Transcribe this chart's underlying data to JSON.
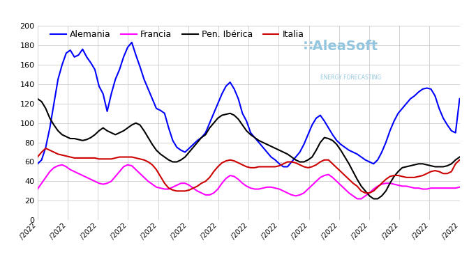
{
  "legend": [
    "Alemania",
    "Francia",
    "Pen. Ibérica",
    "Italia"
  ],
  "colors": {
    "Alemania": "#0000ff",
    "Francia": "#ff00ff",
    "Pen. Iberica": "#000000",
    "Italia": "#cc0000"
  },
  "line_width": 1.5,
  "ylim": [
    0,
    200
  ],
  "yticks": [
    0,
    20,
    40,
    60,
    80,
    100,
    120,
    140,
    160,
    180,
    200
  ],
  "watermark": "AleaSoft",
  "watermark_sub": "ENERGY FORECASTING",
  "background_color": "#ffffff",
  "grid_color": "#cccccc",
  "num_ticks": 15,
  "alemania": [
    58,
    62,
    75,
    95,
    120,
    145,
    160,
    172,
    175,
    168,
    170,
    176,
    168,
    162,
    155,
    138,
    130,
    112,
    130,
    145,
    155,
    168,
    178,
    183,
    170,
    158,
    145,
    135,
    125,
    115,
    113,
    110,
    95,
    82,
    75,
    72,
    70,
    74,
    78,
    82,
    85,
    90,
    100,
    110,
    120,
    130,
    138,
    142,
    135,
    125,
    110,
    102,
    90,
    85,
    80,
    75,
    70,
    65,
    62,
    58,
    55,
    55,
    60,
    65,
    70,
    78,
    88,
    98,
    105,
    108,
    102,
    95,
    88,
    82,
    78,
    75,
    72,
    70,
    68,
    65,
    62,
    60,
    58,
    62,
    70,
    80,
    92,
    102,
    110,
    115,
    120,
    125,
    128,
    132,
    135,
    136,
    135,
    128,
    115,
    105,
    98,
    92,
    90,
    125
  ],
  "francia": [
    32,
    38,
    44,
    50,
    54,
    56,
    57,
    55,
    52,
    50,
    48,
    46,
    44,
    42,
    40,
    38,
    37,
    38,
    40,
    45,
    50,
    55,
    57,
    56,
    52,
    48,
    44,
    40,
    37,
    34,
    33,
    32,
    32,
    34,
    36,
    38,
    38,
    36,
    33,
    30,
    28,
    26,
    26,
    28,
    32,
    38,
    43,
    46,
    45,
    42,
    38,
    35,
    33,
    32,
    32,
    33,
    34,
    34,
    33,
    32,
    30,
    28,
    26,
    25,
    26,
    28,
    32,
    36,
    40,
    44,
    46,
    47,
    44,
    40,
    36,
    32,
    28,
    25,
    22,
    22,
    25,
    28,
    32,
    35,
    37,
    38,
    38,
    37,
    36,
    35,
    35,
    34,
    33,
    33,
    32,
    32,
    33,
    33,
    33,
    33,
    33,
    33,
    33,
    34
  ],
  "pen_iberica": [
    125,
    122,
    115,
    105,
    98,
    92,
    88,
    86,
    84,
    84,
    83,
    82,
    83,
    85,
    88,
    92,
    95,
    92,
    90,
    88,
    90,
    92,
    95,
    98,
    100,
    98,
    92,
    85,
    78,
    72,
    68,
    65,
    62,
    60,
    60,
    62,
    65,
    70,
    75,
    80,
    85,
    88,
    95,
    100,
    105,
    108,
    109,
    110,
    108,
    104,
    98,
    92,
    88,
    85,
    82,
    80,
    78,
    76,
    74,
    72,
    70,
    68,
    65,
    62,
    60,
    60,
    62,
    65,
    72,
    80,
    85,
    84,
    82,
    78,
    72,
    65,
    58,
    50,
    42,
    35,
    30,
    25,
    22,
    22,
    25,
    30,
    38,
    45,
    50,
    54,
    55,
    56,
    57,
    58,
    58,
    57,
    56,
    55,
    55,
    55,
    56,
    58,
    62,
    65
  ],
  "italia": [
    65,
    70,
    74,
    72,
    70,
    68,
    67,
    66,
    65,
    64,
    64,
    64,
    64,
    64,
    64,
    63,
    63,
    63,
    63,
    64,
    65,
    65,
    65,
    65,
    64,
    63,
    62,
    60,
    57,
    52,
    45,
    38,
    33,
    31,
    30,
    30,
    30,
    31,
    33,
    35,
    38,
    40,
    44,
    50,
    55,
    59,
    61,
    62,
    61,
    59,
    57,
    55,
    54,
    54,
    55,
    55,
    55,
    55,
    55,
    56,
    58,
    60,
    60,
    59,
    57,
    55,
    54,
    55,
    57,
    60,
    62,
    62,
    58,
    54,
    50,
    46,
    42,
    38,
    35,
    30,
    28,
    28,
    30,
    34,
    38,
    42,
    45,
    46,
    46,
    45,
    44,
    44,
    44,
    45,
    46,
    48,
    50,
    51,
    50,
    48,
    48,
    50,
    58,
    62
  ]
}
